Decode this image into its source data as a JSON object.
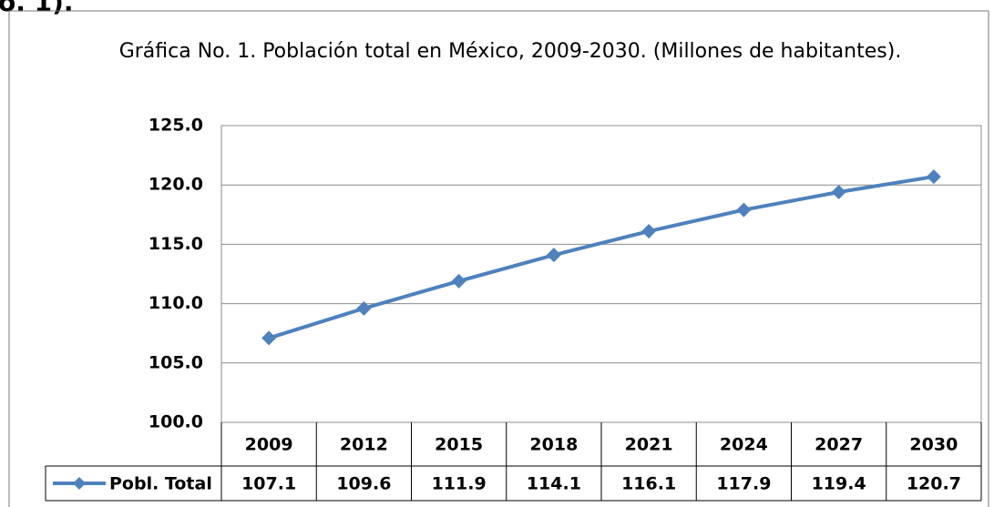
{
  "fragment": "o. 1).",
  "chart_data": {
    "type": "line",
    "title": "Gráfica No. 1. Población total en México, 2009-2030. (Millones de habitantes).",
    "categories": [
      "2009",
      "2012",
      "2015",
      "2018",
      "2021",
      "2024",
      "2027",
      "2030"
    ],
    "series": [
      {
        "name": "Pobl. Total",
        "color": "#4f81bd",
        "values": [
          107.1,
          109.6,
          111.9,
          114.1,
          116.1,
          117.9,
          119.4,
          120.7
        ]
      }
    ],
    "ylim": [
      100,
      125
    ],
    "yticks": [
      {
        "value": 100,
        "label": "100.0"
      },
      {
        "value": 105,
        "label": "105.0"
      },
      {
        "value": 110,
        "label": "110.0"
      },
      {
        "value": 115,
        "label": "115.0"
      },
      {
        "value": 120,
        "label": "120.0"
      },
      {
        "value": 125,
        "label": "125.0"
      }
    ],
    "grid": true
  }
}
